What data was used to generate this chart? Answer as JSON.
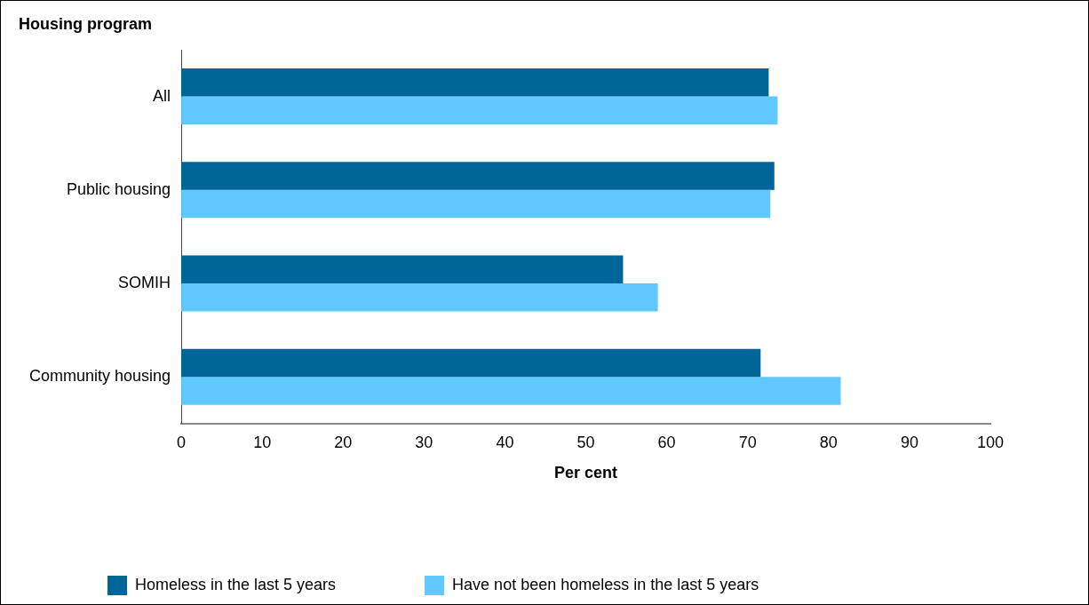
{
  "chart_data": {
    "type": "bar",
    "orientation": "horizontal",
    "ylabel": "Housing program",
    "xlabel": "Per cent",
    "categories": [
      "All",
      "Public housing",
      "SOMIH",
      "Community housing"
    ],
    "series": [
      {
        "name": "Homeless in the last 5 years",
        "color": "#006699",
        "values": [
          72.6,
          73.3,
          54.6,
          71.6
        ]
      },
      {
        "name": "Have not been homeless in the last 5 years",
        "color": "#5ec8ff",
        "values": [
          73.7,
          72.8,
          58.9,
          81.5
        ]
      }
    ],
    "xlim": [
      0,
      100
    ],
    "xticks": [
      0,
      10,
      20,
      30,
      40,
      50,
      60,
      70,
      80,
      90,
      100
    ],
    "grid": false,
    "legend": "bottom"
  }
}
